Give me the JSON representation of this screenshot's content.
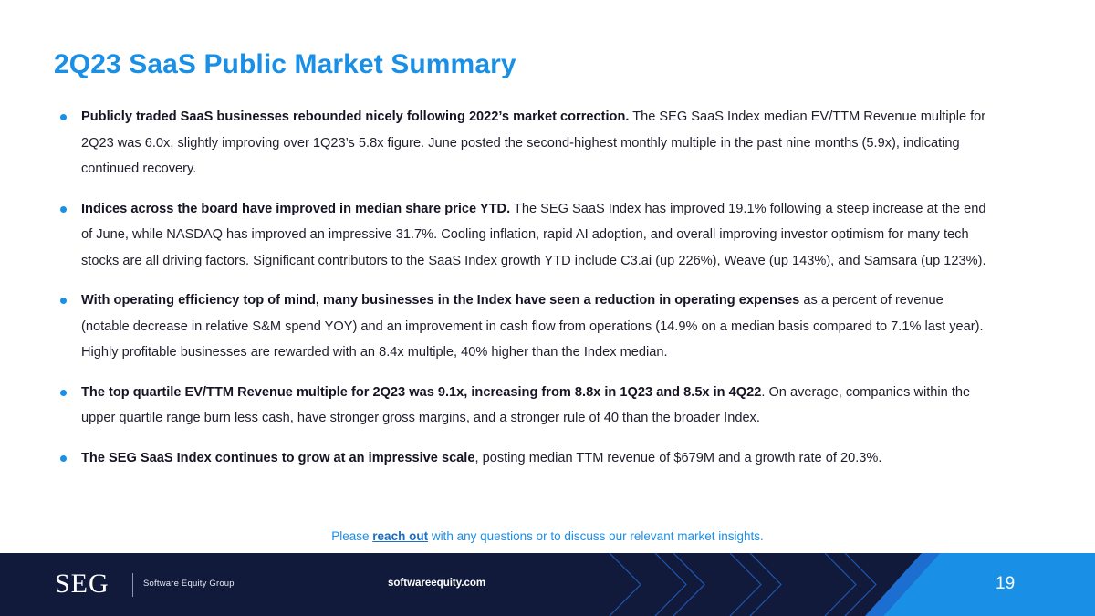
{
  "title": "2Q23 SaaS Public Market Summary",
  "bullets": [
    {
      "bold": "Publicly traded SaaS businesses rebounded nicely following 2022’s market correction.",
      "rest": " The SEG SaaS Index median EV/TTM Revenue multiple for 2Q23 was 6.0x, slightly improving over 1Q23’s 5.8x figure. June posted the second-highest monthly multiple in the past nine months (5.9x), indicating continued recovery."
    },
    {
      "bold": "Indices across the board have improved in median share price YTD.",
      "rest": " The SEG SaaS Index has improved 19.1% following a steep increase at the end of June, while NASDAQ has improved an impressive 31.7%. Cooling inflation, rapid AI adoption, and overall improving investor optimism for many tech stocks are all driving factors. Significant contributors to the SaaS Index growth YTD include C3.ai (up 226%), Weave (up 143%), and Samsara (up 123%)."
    },
    {
      "bold": "With operating efficiency top of mind, many businesses in the Index have seen a reduction in operating expenses",
      "rest": " as a percent of revenue (notable decrease in relative S&M spend YOY) and an improvement in cash flow from operations (14.9% on a median basis compared to 7.1% last year). Highly profitable businesses are rewarded with an 8.4x multiple, 40% higher than the Index median."
    },
    {
      "bold": "The top quartile EV/TTM Revenue multiple for 2Q23 was 9.1x, increasing from 8.8x in 1Q23 and 8.5x in 4Q22",
      "rest": ". On average, companies within the upper quartile range burn less cash, have stronger gross margins, and a stronger rule of 40 than the broader Index."
    },
    {
      "bold": "The SEG SaaS Index continues to grow at an impressive scale",
      "rest": ", posting median TTM revenue of $679M and a growth rate of 20.3%."
    }
  ],
  "cta": {
    "prefix": "Please ",
    "link": "reach out",
    "suffix": " with any questions or to discuss our relevant market insights."
  },
  "footer": {
    "logo": "SEG",
    "logo_sub": "Software Equity Group",
    "website": "softwareequity.com",
    "page_number": "19"
  },
  "colors": {
    "accent": "#1a8fe6",
    "footer_bg": "#111a3a",
    "footer_accent": "#1c6fd1"
  }
}
